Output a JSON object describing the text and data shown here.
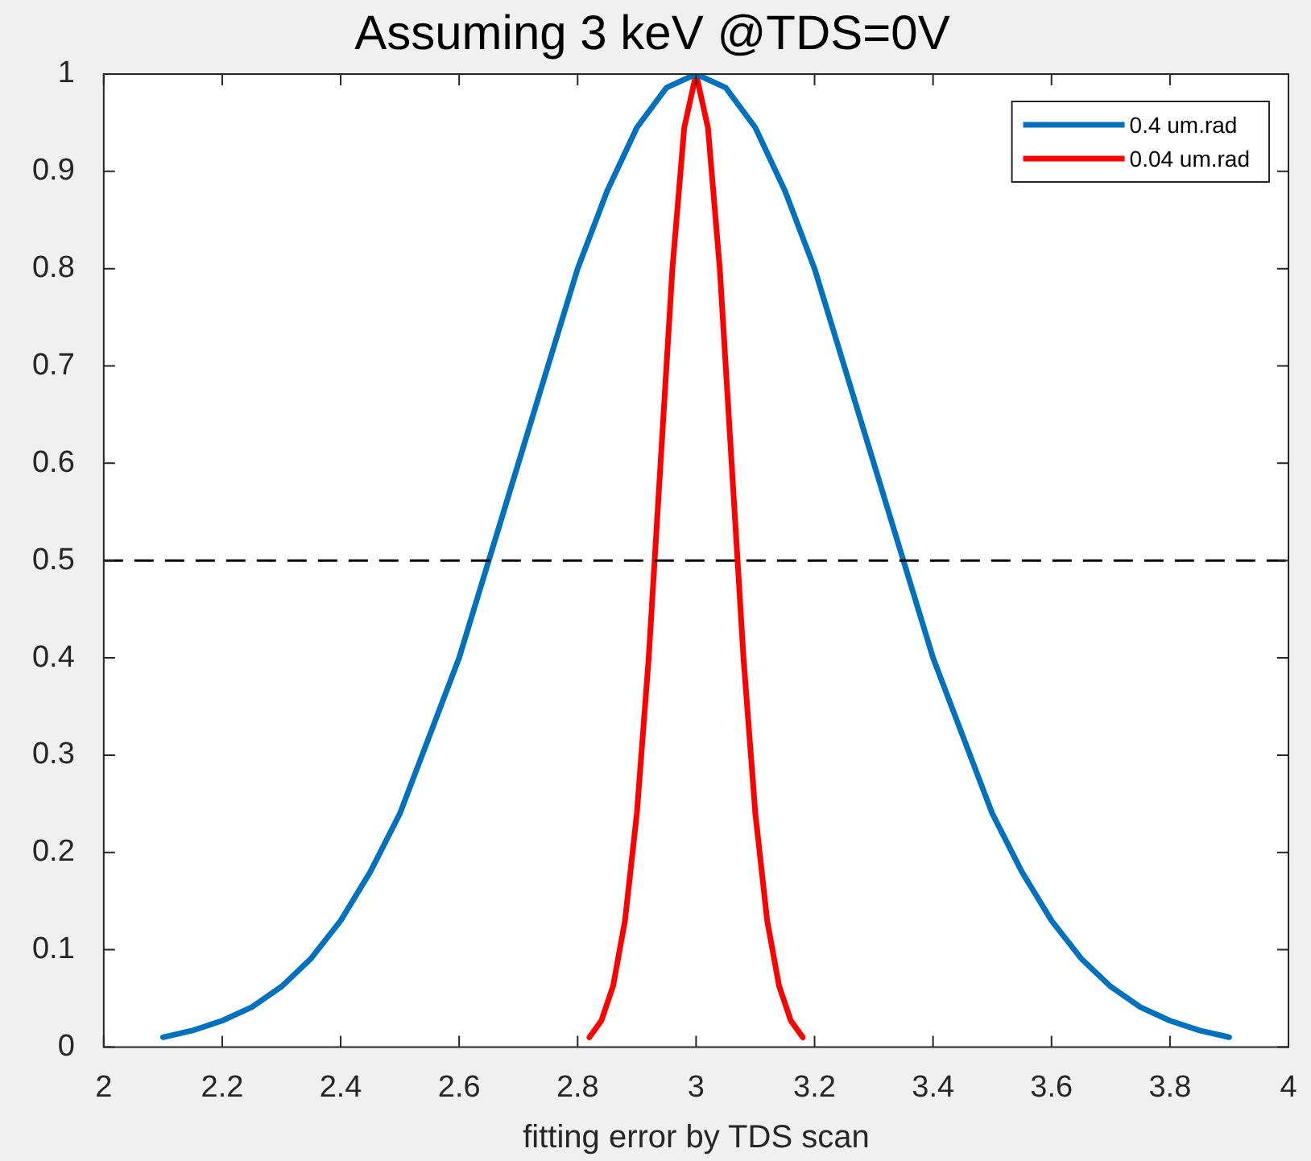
{
  "chart_data": {
    "type": "line",
    "title": "Assuming 3 keV @TDS=0V",
    "xlabel": "fitting error by TDS scan",
    "xlim": [
      2,
      4
    ],
    "xticks": [
      2,
      2.2,
      2.4,
      2.6,
      2.8,
      3,
      3.2,
      3.4,
      3.6,
      3.8,
      4
    ],
    "ylim": [
      0,
      1
    ],
    "yticks": [
      0,
      0.1,
      0.2,
      0.3,
      0.4,
      0.5,
      0.6,
      0.7,
      0.8,
      0.9,
      1
    ],
    "grid": false,
    "legend": "top right",
    "marker": "none",
    "line_style": "solid",
    "ref_lines": [
      {
        "axis": "y",
        "value": 0.5,
        "color": "#000000",
        "line_style": "dashed"
      }
    ],
    "series": [
      {
        "name": "0.4 um.rad",
        "color": "#0072bd",
        "x": [
          2.1,
          2.15,
          2.2,
          2.25,
          2.3,
          2.35,
          2.4,
          2.45,
          2.5,
          2.55,
          2.6,
          2.65,
          2.7,
          2.75,
          2.8,
          2.85,
          2.9,
          2.95,
          3,
          3.05,
          3.1,
          3.15,
          3.2,
          3.25,
          3.3,
          3.35,
          3.4,
          3.45,
          3.5,
          3.55,
          3.6,
          3.65,
          3.7,
          3.75,
          3.8,
          3.85,
          3.9
        ],
        "values": [
          0.01,
          0.017,
          0.027,
          0.041,
          0.062,
          0.091,
          0.13,
          0.18,
          0.24,
          0.32,
          0.4,
          0.5,
          0.6,
          0.7,
          0.8,
          0.88,
          0.945,
          0.986,
          1,
          0.986,
          0.945,
          0.88,
          0.8,
          0.7,
          0.6,
          0.5,
          0.4,
          0.32,
          0.24,
          0.18,
          0.13,
          0.091,
          0.062,
          0.041,
          0.027,
          0.017,
          0.01
        ]
      },
      {
        "name": "0.04 um.rad",
        "color": "#ff0000",
        "x": [
          2.82,
          2.84,
          2.86,
          2.88,
          2.9,
          2.92,
          2.94,
          2.96,
          2.98,
          3,
          3.02,
          3.04,
          3.06,
          3.08,
          3.1,
          3.12,
          3.14,
          3.16,
          3.18
        ],
        "values": [
          0.01,
          0.027,
          0.063,
          0.13,
          0.24,
          0.4,
          0.6,
          0.8,
          0.945,
          1,
          0.945,
          0.8,
          0.6,
          0.4,
          0.24,
          0.13,
          0.063,
          0.027,
          0.01
        ]
      }
    ]
  }
}
